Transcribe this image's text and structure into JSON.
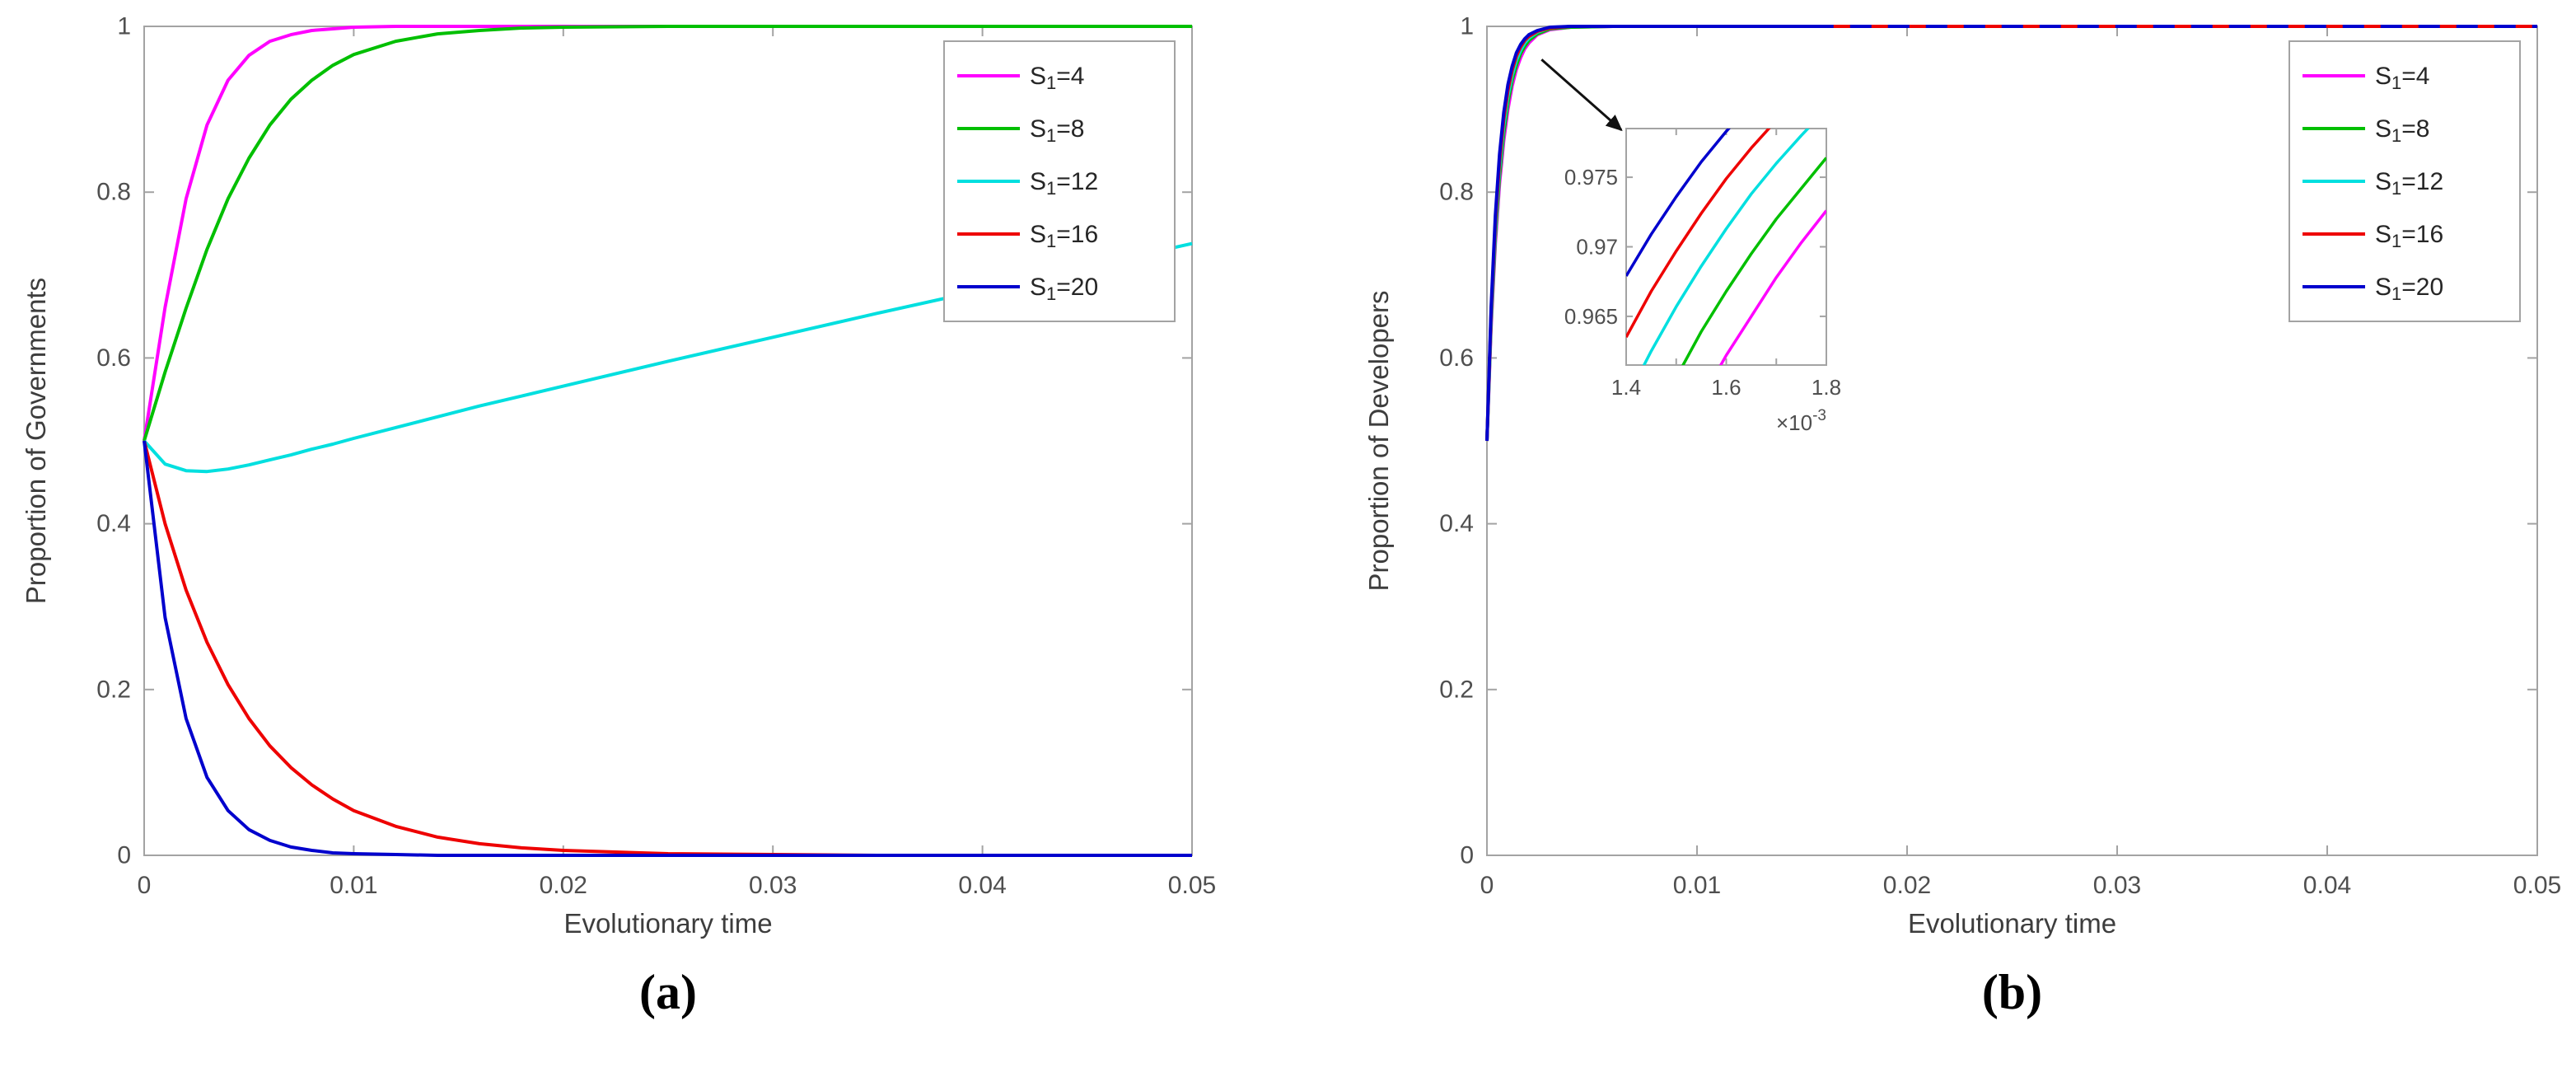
{
  "figure": {
    "background": "#ffffff",
    "colors": {
      "axis_box": "#a3a3a3",
      "tick_text": "#4f4f4f",
      "label_text": "#3d3d3d",
      "legend_border": "#a3a3a3",
      "legend_text": "#262626",
      "arrow": "#111111"
    }
  },
  "chart_data": [
    {
      "type": "line",
      "caption": "(a)",
      "title": "",
      "xlabel": "Evolutionary time",
      "ylabel": "Proportion of Governments",
      "xlim": [
        0,
        0.05
      ],
      "ylim": [
        0,
        1
      ],
      "grid": false,
      "legend_position": "upper-right",
      "xticks": [
        0,
        0.01,
        0.02,
        0.03,
        0.04,
        0.05
      ],
      "xtick_labels": [
        "0",
        "0.01",
        "0.02",
        "0.03",
        "0.04",
        "0.05"
      ],
      "yticks": [
        0,
        0.2,
        0.4,
        0.6,
        0.8,
        1
      ],
      "ytick_labels": [
        "0",
        "0.2",
        "0.4",
        "0.6",
        "0.8",
        "1"
      ],
      "x": [
        0,
        0.001,
        0.002,
        0.003,
        0.004,
        0.005,
        0.006,
        0.007,
        0.008,
        0.009,
        0.01,
        0.012,
        0.014,
        0.016,
        0.018,
        0.02,
        0.025,
        0.03,
        0.035,
        0.04,
        0.045,
        0.05
      ],
      "series": [
        {
          "name": "S1=4",
          "label": {
            "pre": "S",
            "sub": "1",
            "post": "=4"
          },
          "color": "#ff00ff",
          "y": [
            0.5,
            0.661,
            0.792,
            0.881,
            0.935,
            0.965,
            0.982,
            0.99,
            0.995,
            0.997,
            0.999,
            1,
            1,
            1,
            1,
            1,
            1,
            1,
            1,
            1,
            1,
            1
          ]
        },
        {
          "name": "S1=8",
          "label": {
            "pre": "S",
            "sub": "1",
            "post": "=8"
          },
          "color": "#00bf00",
          "y": [
            0.5,
            0.583,
            0.66,
            0.731,
            0.792,
            0.841,
            0.881,
            0.912,
            0.935,
            0.953,
            0.966,
            0.982,
            0.991,
            0.995,
            0.998,
            0.999,
            1,
            1,
            1,
            1,
            1,
            1
          ]
        },
        {
          "name": "S1=12",
          "label": {
            "pre": "S",
            "sub": "1",
            "post": "=12"
          },
          "color": "#00dfdf",
          "y": [
            0.5,
            0.472,
            0.464,
            0.463,
            0.466,
            0.471,
            0.477,
            0.483,
            0.49,
            0.496,
            0.503,
            0.516,
            0.529,
            0.542,
            0.554,
            0.566,
            0.596,
            0.625,
            0.654,
            0.682,
            0.71,
            0.738
          ]
        },
        {
          "name": "S1=16",
          "label": {
            "pre": "S",
            "sub": "1",
            "post": "=16"
          },
          "color": "#ee0000",
          "y": [
            0.5,
            0.4,
            0.32,
            0.257,
            0.206,
            0.165,
            0.132,
            0.106,
            0.085,
            0.068,
            0.054,
            0.035,
            0.022,
            0.014,
            0.009,
            0.006,
            0.002,
            0.001,
            0,
            0,
            0,
            0
          ]
        },
        {
          "name": "S1=20",
          "label": {
            "pre": "S",
            "sub": "1",
            "post": "=20"
          },
          "color": "#0000cd",
          "y": [
            0.5,
            0.287,
            0.165,
            0.094,
            0.054,
            0.031,
            0.018,
            0.01,
            0.006,
            0.003,
            0.002,
            0.001,
            0,
            0,
            0,
            0,
            0,
            0,
            0,
            0,
            0,
            0
          ]
        }
      ]
    },
    {
      "type": "line",
      "caption": "(b)",
      "title": "",
      "xlabel": "Evolutionary time",
      "ylabel": "Proportion of Developers",
      "xlim": [
        0,
        0.05
      ],
      "ylim": [
        0,
        1
      ],
      "grid": false,
      "legend_position": "upper-right",
      "xticks": [
        0,
        0.01,
        0.02,
        0.03,
        0.04,
        0.05
      ],
      "xtick_labels": [
        "0",
        "0.01",
        "0.02",
        "0.03",
        "0.04",
        "0.05"
      ],
      "yticks": [
        0,
        0.2,
        0.4,
        0.6,
        0.8,
        1
      ],
      "ytick_labels": [
        "0",
        "0.2",
        "0.4",
        "0.6",
        "0.8",
        "1"
      ],
      "x": [
        0,
        0.0002,
        0.0004,
        0.0006,
        0.0008,
        0.001,
        0.0012,
        0.0014,
        0.0016,
        0.0018,
        0.002,
        0.0024,
        0.003,
        0.004,
        0.006,
        0.01,
        0.02,
        0.03,
        0.04,
        0.05
      ],
      "series": [
        {
          "name": "S1=4",
          "label": {
            "pre": "S",
            "sub": "1",
            "post": "=4"
          },
          "color": "#ff00ff",
          "y": [
            0.5,
            0.638,
            0.738,
            0.81,
            0.862,
            0.9,
            0.928,
            0.948,
            0.962,
            0.973,
            0.98,
            0.99,
            0.996,
            0.999,
            1,
            1,
            1,
            1,
            1,
            1
          ]
        },
        {
          "name": "S1=8",
          "label": {
            "pre": "S",
            "sub": "1",
            "post": "=8"
          },
          "color": "#00bf00",
          "y": [
            0.5,
            0.644,
            0.746,
            0.819,
            0.871,
            0.908,
            0.935,
            0.953,
            0.967,
            0.976,
            0.983,
            0.991,
            0.997,
            0.999,
            1,
            1,
            1,
            1,
            1,
            1
          ]
        },
        {
          "name": "S1=12",
          "label": {
            "pre": "S",
            "sub": "1",
            "post": "=12"
          },
          "color": "#00dfdf",
          "y": [
            0.5,
            0.65,
            0.755,
            0.829,
            0.88,
            0.916,
            0.941,
            0.959,
            0.971,
            0.98,
            0.986,
            0.993,
            0.998,
            1,
            1,
            1,
            1,
            1,
            1,
            1
          ]
        },
        {
          "name": "S1=16",
          "label": {
            "pre": "S",
            "sub": "1",
            "post": "=16"
          },
          "color": "#ee0000",
          "y": [
            0.5,
            0.656,
            0.763,
            0.837,
            0.888,
            0.923,
            0.947,
            0.964,
            0.975,
            0.983,
            0.988,
            0.994,
            0.998,
            1,
            1,
            1,
            1,
            1,
            1,
            1
          ]
        },
        {
          "name": "S1=20",
          "label": {
            "pre": "S",
            "sub": "1",
            "post": "=20"
          },
          "color": "#0000cd",
          "y": [
            0.5,
            0.662,
            0.772,
            0.846,
            0.896,
            0.93,
            0.952,
            0.968,
            0.978,
            0.985,
            0.99,
            0.995,
            0.999,
            1,
            1,
            1,
            1,
            1,
            1,
            1
          ]
        }
      ],
      "overlay_dashes": {
        "color": "#ee0000",
        "y": 1,
        "x_start": 0.0165,
        "x_end": 0.05,
        "dash": "20 26"
      },
      "annotation_arrow": {
        "from": [
          0.0026,
          0.96
        ],
        "to": [
          0.0064,
          0.875
        ]
      },
      "inset": {
        "xlim": [
          0.0014,
          0.0018
        ],
        "ylim": [
          0.9615,
          0.9785
        ],
        "xticks": [
          0.0014,
          0.0015,
          0.0016,
          0.0017,
          0.0018
        ],
        "xtick_labels": [
          "1.4",
          "",
          "1.6",
          "",
          "1.8"
        ],
        "yticks": [
          0.965,
          0.97,
          0.975
        ],
        "ytick_labels": [
          "0.965",
          "0.97",
          "0.975"
        ],
        "x_multiplier": {
          "pre": "×10",
          "sup": "-3"
        },
        "x": [
          0.0014,
          0.00145,
          0.0015,
          0.00155,
          0.0016,
          0.00165,
          0.0017,
          0.00175,
          0.0018
        ],
        "series": [
          {
            "name": "S1=4",
            "y": [
              0.9477,
              0.9518,
              0.9555,
              0.959,
              0.9622,
              0.965,
              0.9678,
              0.9703,
              0.9726
            ]
          },
          {
            "name": "S1=8",
            "y": [
              0.9533,
              0.9572,
              0.9606,
              0.9639,
              0.9668,
              0.9695,
              0.972,
              0.9742,
              0.9764
            ]
          },
          {
            "name": "S1=12",
            "y": [
              0.959,
              0.9625,
              0.9657,
              0.9686,
              0.9713,
              0.9738,
              0.976,
              0.978,
              0.9799
            ]
          },
          {
            "name": "S1=16",
            "y": [
              0.9635,
              0.9668,
              0.9697,
              0.9724,
              0.9749,
              0.9771,
              0.9791,
              0.981,
              0.9827
            ]
          },
          {
            "name": "S1=20",
            "y": [
              0.9679,
              0.9709,
              0.9736,
              0.9761,
              0.9783,
              0.9803,
              0.9822,
              0.9838,
              0.9853
            ]
          }
        ]
      }
    }
  ]
}
